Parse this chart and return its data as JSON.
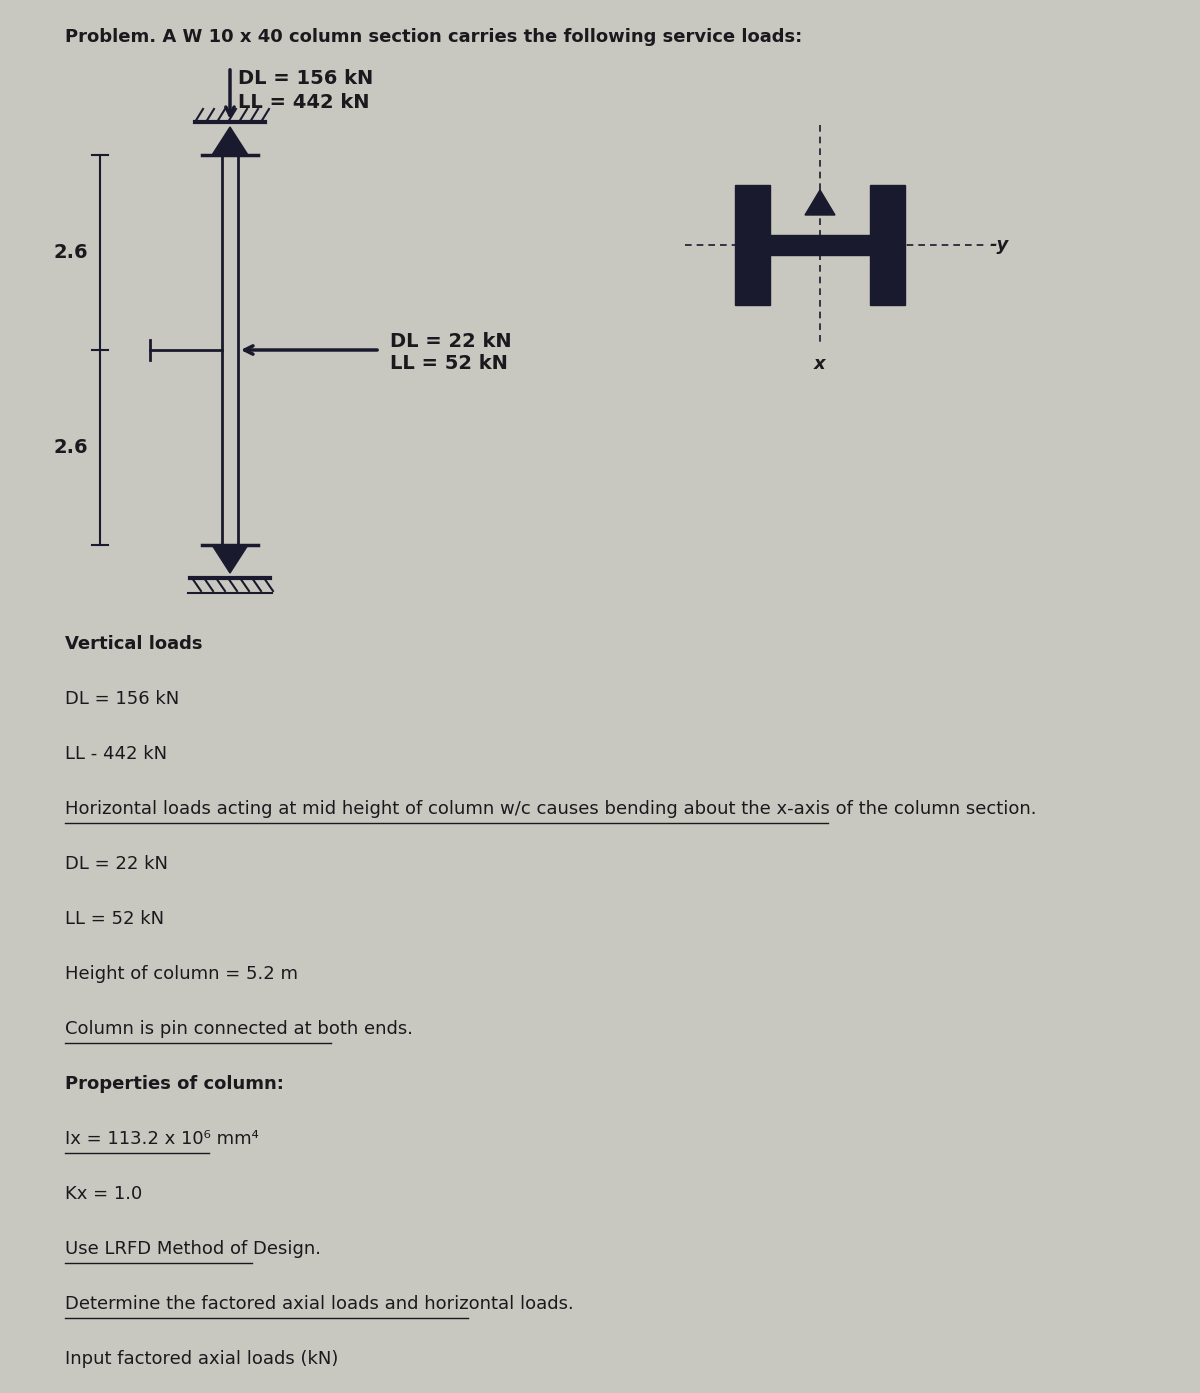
{
  "title": "Problem. A W 10 x 40 column section carries the following service loads:",
  "bg_color": "#c8c8c0",
  "text_color": "#1a1a1e",
  "vertical_DL": "DL = 156 kN",
  "vertical_LL": "LL = 442 kN",
  "horizontal_DL": "DL = 22 kN",
  "horizontal_LL": "LL = 52 kN",
  "dim_top": "2.6",
  "dim_bottom": "2.6",
  "body_lines": [
    [
      "Vertical loads",
      "bold",
      false
    ],
    [
      "DL = 156 kN",
      "normal",
      false
    ],
    [
      "LL - 442 kN",
      "normal",
      false
    ],
    [
      "Horizontal loads acting at mid height of column w/c causes bending about the x-axis of the column section.",
      "normal",
      true
    ],
    [
      "DL = 22 kN",
      "normal",
      false
    ],
    [
      "LL = 52 kN",
      "normal",
      false
    ],
    [
      "Height of column = 5.2 m",
      "normal",
      false
    ],
    [
      "Column is pin connected at both ends.",
      "normal",
      true
    ],
    [
      "Properties of column:",
      "bold",
      false
    ],
    [
      "Ix = 113.2 x 10⁶ mm⁴",
      "normal",
      true
    ],
    [
      "Kx = 1.0",
      "normal",
      false
    ],
    [
      "Use LRFD Method of Design.",
      "normal",
      true
    ],
    [
      "Determine the factored axial loads and horizontal loads.",
      "normal",
      true
    ],
    [
      "Input factored axial loads (kN)",
      "normal",
      false
    ]
  ]
}
